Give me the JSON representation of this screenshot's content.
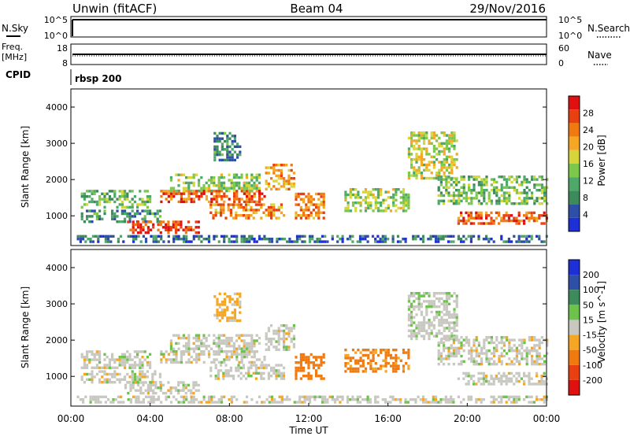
{
  "header": {
    "station": "Unwin (fitACF)",
    "beam": "Beam 04",
    "date": "29/Nov/2016"
  },
  "top_panels": {
    "nsky_label": "N.Sky",
    "nsky_ticks": [
      "10^5",
      "10^0"
    ],
    "nsearch_ticks": [
      "10^5",
      "10^0"
    ],
    "nsearch_label": "N.Search",
    "freq_label_1": "Freq.",
    "freq_label_2": "[MHz]",
    "freq_ticks": [
      "18",
      "8"
    ],
    "nave_ticks": [
      "60",
      "0"
    ],
    "nave_label": "Nave",
    "cpid_label": "CPID",
    "cpid_value": "rbsp 200"
  },
  "time_axis": {
    "label": "Time UT",
    "ticks": [
      "00:00",
      "04:00",
      "08:00",
      "12:00",
      "16:00",
      "20:00",
      "00:00"
    ]
  },
  "colors": {
    "power": [
      "#1f2fd6",
      "#2e4fa8",
      "#3d8a5a",
      "#4ea86a",
      "#7cc84a",
      "#d6d63a",
      "#f5a623",
      "#f07a10",
      "#e84010",
      "#e01010"
    ],
    "velocity": [
      "#1f2fd6",
      "#2e4fa8",
      "#3d8a5a",
      "#6cc24a",
      "#c8c8c0",
      "#f5a623",
      "#f07a10",
      "#e84010",
      "#e01010"
    ]
  },
  "chart_data": [
    {
      "type": "heatmap",
      "panel": "power",
      "ylabel": "Slant Range [km]",
      "xlabel": "",
      "ylim": [
        180,
        4500
      ],
      "xlim_hours": [
        0,
        24
      ],
      "y_ticks": [
        "1000",
        "2000",
        "3000",
        "4000"
      ],
      "colorbar": {
        "label": "Power [dB]",
        "ticks": [
          "4",
          "8",
          "12",
          "16",
          "20",
          "24",
          "28"
        ],
        "range": [
          0,
          30
        ]
      },
      "regions": [
        {
          "t0": 0.5,
          "t1": 4.0,
          "r0": 1200,
          "r1": 1700,
          "level": 12
        },
        {
          "t0": 0.5,
          "t1": 4.5,
          "r0": 800,
          "r1": 1150,
          "level": 8
        },
        {
          "t0": 2.7,
          "t1": 6.5,
          "r0": 500,
          "r1": 800,
          "level": 26
        },
        {
          "t0": 4.5,
          "t1": 9.8,
          "r0": 1350,
          "r1": 1700,
          "level": 24
        },
        {
          "t0": 5.0,
          "t1": 9.5,
          "r0": 1650,
          "r1": 2100,
          "level": 14
        },
        {
          "t0": 7.0,
          "t1": 10.8,
          "r0": 900,
          "r1": 1300,
          "level": 22
        },
        {
          "t0": 9.8,
          "t1": 11.2,
          "r0": 1700,
          "r1": 2400,
          "level": 20
        },
        {
          "t0": 11.3,
          "t1": 12.8,
          "r0": 900,
          "r1": 1600,
          "level": 22
        },
        {
          "t0": 13.8,
          "t1": 17.0,
          "r0": 1100,
          "r1": 1700,
          "level": 14
        },
        {
          "t0": 17.0,
          "t1": 19.5,
          "r0": 2000,
          "r1": 3300,
          "level": 16
        },
        {
          "t0": 18.5,
          "t1": 24.0,
          "r0": 1300,
          "r1": 2100,
          "level": 12
        },
        {
          "t0": 19.5,
          "t1": 24.0,
          "r0": 750,
          "r1": 1100,
          "level": 24
        },
        {
          "t0": 7.2,
          "t1": 8.5,
          "r0": 2500,
          "r1": 3300,
          "level": 8
        },
        {
          "t0": 0.3,
          "t1": 24.0,
          "r0": 250,
          "r1": 450,
          "level": 6
        }
      ]
    },
    {
      "type": "heatmap",
      "panel": "velocity",
      "ylabel": "Slant Range [km]",
      "xlabel": "Time UT",
      "ylim": [
        180,
        4500
      ],
      "xlim_hours": [
        0,
        24
      ],
      "y_ticks": [
        "1000",
        "2000",
        "3000",
        "4000"
      ],
      "colorbar": {
        "label": "Velocity [m s^-1]",
        "ticks": [
          "200",
          "100",
          "50",
          "15",
          "-15",
          "-50",
          "-100",
          "-200"
        ],
        "range": [
          -250,
          250
        ]
      },
      "regions": [
        {
          "t0": 0.5,
          "t1": 4.0,
          "r0": 1200,
          "r1": 1700,
          "level": 0
        },
        {
          "t0": 0.5,
          "t1": 4.5,
          "r0": 800,
          "r1": 1150,
          "level": 0
        },
        {
          "t0": 2.7,
          "t1": 6.5,
          "r0": 500,
          "r1": 800,
          "level": 0
        },
        {
          "t0": 4.5,
          "t1": 9.8,
          "r0": 1350,
          "r1": 1700,
          "level": 0
        },
        {
          "t0": 5.0,
          "t1": 9.5,
          "r0": 1650,
          "r1": 2100,
          "level": 0
        },
        {
          "t0": 7.0,
          "t1": 10.8,
          "r0": 900,
          "r1": 1300,
          "level": 0
        },
        {
          "t0": 9.8,
          "t1": 11.2,
          "r0": 1700,
          "r1": 2400,
          "level": 0
        },
        {
          "t0": 11.3,
          "t1": 12.8,
          "r0": 900,
          "r1": 1600,
          "level": -70
        },
        {
          "t0": 13.8,
          "t1": 17.0,
          "r0": 1100,
          "r1": 1700,
          "level": -60
        },
        {
          "t0": 17.0,
          "t1": 19.5,
          "r0": 2000,
          "r1": 3300,
          "level": 5
        },
        {
          "t0": 18.5,
          "t1": 24.0,
          "r0": 1300,
          "r1": 2100,
          "level": 0
        },
        {
          "t0": 19.5,
          "t1": 24.0,
          "r0": 750,
          "r1": 1100,
          "level": 0
        },
        {
          "t0": 7.2,
          "t1": 8.5,
          "r0": 2500,
          "r1": 3300,
          "level": -30
        },
        {
          "t0": 0.3,
          "t1": 24.0,
          "r0": 250,
          "r1": 450,
          "level": 0
        }
      ]
    }
  ]
}
